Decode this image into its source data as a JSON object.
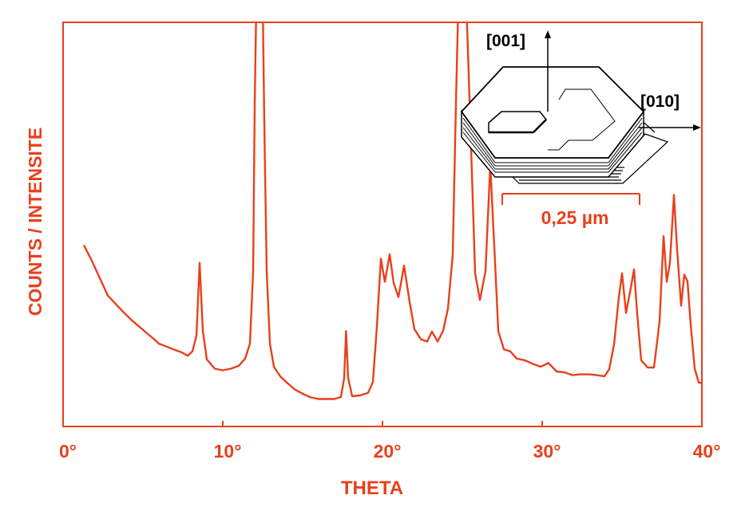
{
  "colors": {
    "accent": "#e8401c",
    "ink": "#000000",
    "background": "#ffffff"
  },
  "chart_data": {
    "type": "line",
    "title": "",
    "xlabel": "THETA",
    "ylabel": "COUNTS / INTENSITE",
    "xlim": [
      0,
      40
    ],
    "ylim": [
      0,
      100
    ],
    "y_ticks_shown": false,
    "grid": false,
    "x_ticks": [
      {
        "value": 0,
        "label": "0°"
      },
      {
        "value": 10,
        "label": "10°"
      },
      {
        "value": 20,
        "label": "20°"
      },
      {
        "value": 30,
        "label": "30°"
      },
      {
        "value": 40,
        "label": "40°"
      }
    ],
    "series": [
      {
        "name": "",
        "points": [
          [
            1.3,
            44.9
          ],
          [
            1.8,
            41.0
          ],
          [
            2.3,
            36.7
          ],
          [
            2.8,
            32.4
          ],
          [
            3.3,
            30.3
          ],
          [
            3.8,
            28.2
          ],
          [
            4.3,
            26.3
          ],
          [
            4.8,
            24.6
          ],
          [
            5.3,
            22.9
          ],
          [
            5.7,
            21.6
          ],
          [
            6.0,
            20.5
          ],
          [
            6.4,
            19.9
          ],
          [
            6.9,
            19.1
          ],
          [
            7.4,
            18.4
          ],
          [
            7.8,
            17.5
          ],
          [
            8.1,
            18.6
          ],
          [
            8.35,
            22.5
          ],
          [
            8.55,
            40.5
          ],
          [
            8.75,
            23.6
          ],
          [
            9.0,
            16.6
          ],
          [
            9.5,
            14.3
          ],
          [
            10.0,
            13.9
          ],
          [
            10.5,
            14.3
          ],
          [
            11.0,
            15.0
          ],
          [
            11.4,
            16.8
          ],
          [
            11.7,
            20.5
          ],
          [
            11.9,
            38.4
          ],
          [
            12.0,
            80.0
          ],
          [
            12.1,
            105.0
          ],
          [
            12.5,
            105.0
          ],
          [
            12.6,
            75.0
          ],
          [
            12.75,
            38.4
          ],
          [
            12.95,
            20.5
          ],
          [
            13.2,
            14.8
          ],
          [
            13.6,
            12.4
          ],
          [
            14.0,
            10.9
          ],
          [
            14.5,
            9.2
          ],
          [
            15.0,
            8.1
          ],
          [
            15.5,
            7.2
          ],
          [
            16.0,
            6.8
          ],
          [
            16.5,
            6.8
          ],
          [
            17.0,
            6.8
          ],
          [
            17.4,
            7.3
          ],
          [
            17.6,
            12.0
          ],
          [
            17.72,
            23.6
          ],
          [
            17.85,
            12.0
          ],
          [
            18.1,
            7.5
          ],
          [
            18.6,
            7.7
          ],
          [
            19.1,
            8.3
          ],
          [
            19.4,
            11.0
          ],
          [
            19.65,
            24.8
          ],
          [
            19.9,
            41.5
          ],
          [
            20.15,
            35.8
          ],
          [
            20.45,
            42.6
          ],
          [
            20.7,
            35.5
          ],
          [
            21.0,
            32.0
          ],
          [
            21.35,
            39.8
          ],
          [
            21.7,
            30.8
          ],
          [
            22.0,
            24.1
          ],
          [
            22.4,
            21.6
          ],
          [
            22.8,
            21.0
          ],
          [
            23.1,
            23.5
          ],
          [
            23.45,
            21.0
          ],
          [
            23.8,
            23.7
          ],
          [
            24.1,
            29.2
          ],
          [
            24.4,
            42.6
          ],
          [
            24.6,
            80.0
          ],
          [
            24.75,
            105.0
          ],
          [
            25.25,
            105.0
          ],
          [
            25.5,
            75.0
          ],
          [
            25.8,
            37.9
          ],
          [
            26.1,
            31.3
          ],
          [
            26.45,
            38.4
          ],
          [
            26.75,
            64.8
          ],
          [
            27.05,
            40.5
          ],
          [
            27.25,
            23.6
          ],
          [
            27.6,
            19.1
          ],
          [
            28.0,
            18.6
          ],
          [
            28.4,
            16.8
          ],
          [
            28.9,
            16.4
          ],
          [
            29.4,
            15.5
          ],
          [
            29.9,
            14.8
          ],
          [
            30.4,
            15.7
          ],
          [
            30.9,
            13.6
          ],
          [
            31.4,
            13.4
          ],
          [
            31.9,
            12.7
          ],
          [
            32.4,
            12.9
          ],
          [
            32.9,
            12.9
          ],
          [
            33.4,
            12.7
          ],
          [
            33.9,
            12.4
          ],
          [
            34.2,
            14.2
          ],
          [
            34.5,
            20.3
          ],
          [
            34.8,
            32.0
          ],
          [
            35.0,
            37.9
          ],
          [
            35.25,
            28.1
          ],
          [
            35.55,
            34.3
          ],
          [
            35.75,
            38.9
          ],
          [
            35.95,
            27.8
          ],
          [
            36.2,
            16.4
          ],
          [
            36.6,
            14.6
          ],
          [
            37.0,
            14.6
          ],
          [
            37.35,
            26.0
          ],
          [
            37.6,
            47.1
          ],
          [
            37.8,
            35.8
          ],
          [
            38.0,
            40.6
          ],
          [
            38.25,
            57.3
          ],
          [
            38.45,
            43.7
          ],
          [
            38.7,
            29.9
          ],
          [
            38.9,
            37.6
          ],
          [
            39.1,
            35.9
          ],
          [
            39.3,
            25.2
          ],
          [
            39.55,
            14.3
          ],
          [
            39.8,
            10.9
          ],
          [
            40.0,
            10.7
          ]
        ]
      }
    ],
    "inset": {
      "label_c_axis": "[001]",
      "label_b_axis": "[010]",
      "scale_bar": "0,25 µm"
    }
  }
}
